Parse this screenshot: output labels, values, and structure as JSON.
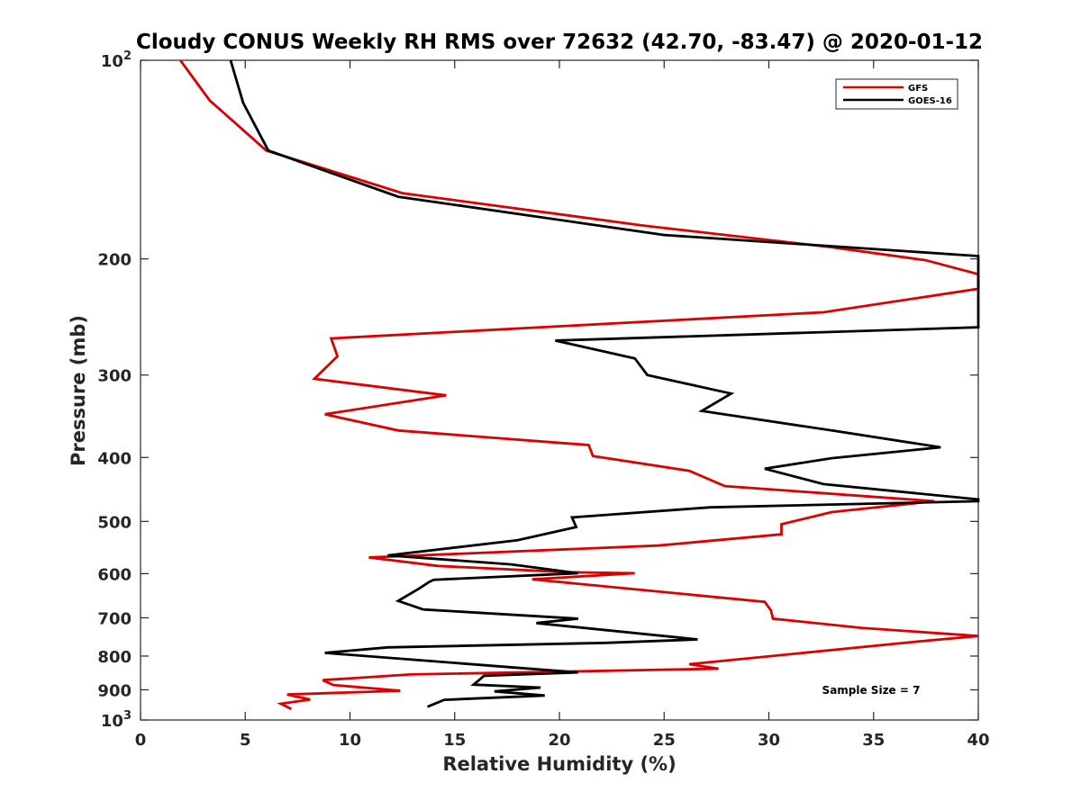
{
  "chart_data": {
    "type": "line",
    "title": "Cloudy CONUS Weekly RH RMS over 72632 (42.70, -83.47) @ 2020-01-12",
    "xlabel": "Relative Humidity (%)",
    "ylabel": "Pressure (mb)",
    "xlim": [
      0,
      40
    ],
    "ylim": [
      100,
      1000
    ],
    "y_scale": "log",
    "y_reversed": true,
    "grid": false,
    "legend_position": "top-right",
    "x_ticks": [
      "0",
      "5",
      "10",
      "15",
      "20",
      "25",
      "30",
      "35",
      "40"
    ],
    "y_ticks": [
      {
        "value": 100,
        "base": "10",
        "exp": "2"
      },
      {
        "value": 200,
        "label": "200"
      },
      {
        "value": 300,
        "label": "300"
      },
      {
        "value": 400,
        "label": "400"
      },
      {
        "value": 500,
        "label": "500"
      },
      {
        "value": 600,
        "label": "600"
      },
      {
        "value": 700,
        "label": "700"
      },
      {
        "value": 800,
        "label": "800"
      },
      {
        "value": 900,
        "label": "900"
      },
      {
        "value": 1000,
        "base": "10",
        "exp": "3"
      }
    ],
    "annotation": "Sample Size = 7",
    "series": [
      {
        "name": "GFS",
        "color": "#dd0000",
        "points": [
          [
            1.9,
            100
          ],
          [
            3.3,
            115
          ],
          [
            6.0,
            137
          ],
          [
            12.5,
            159
          ],
          [
            24.0,
            178
          ],
          [
            33.0,
            192
          ],
          [
            37.5,
            201
          ],
          [
            40,
            211
          ],
          [
            40,
            222
          ],
          [
            32.6,
            241
          ],
          [
            9.1,
            264
          ],
          [
            9.4,
            281
          ],
          [
            8.3,
            304
          ],
          [
            14.6,
            322
          ],
          [
            8.8,
            344
          ],
          [
            12.3,
            364
          ],
          [
            21.4,
            383
          ],
          [
            21.6,
            398
          ],
          [
            26.2,
            419
          ],
          [
            27.9,
            442
          ],
          [
            37.9,
            466
          ],
          [
            33.0,
            484
          ],
          [
            30.6,
            505
          ],
          [
            30.6,
            523
          ],
          [
            24.7,
            544
          ],
          [
            10.9,
            567
          ],
          [
            14.2,
            584
          ],
          [
            20.4,
            597
          ],
          [
            23.6,
            599
          ],
          [
            18.7,
            612
          ],
          [
            29.8,
            662
          ],
          [
            30.1,
            682
          ],
          [
            30.2,
            702
          ],
          [
            34.4,
            725
          ],
          [
            40,
            746
          ],
          [
            37.2,
            760
          ],
          [
            26.2,
            823
          ],
          [
            27.6,
            836
          ],
          [
            12.9,
            853
          ],
          [
            8.7,
            870
          ],
          [
            9.2,
            885
          ],
          [
            12.4,
            903
          ],
          [
            7.0,
            915
          ],
          [
            8.1,
            931
          ],
          [
            6.7,
            945
          ],
          [
            7.2,
            962
          ]
        ]
      },
      {
        "name": "GOES-16",
        "color": "#000000",
        "points": [
          [
            4.3,
            100
          ],
          [
            4.9,
            116
          ],
          [
            6.1,
            137
          ],
          [
            12.3,
            161
          ],
          [
            25.0,
            184
          ],
          [
            40,
            198
          ],
          [
            40,
            254
          ],
          [
            19.8,
            266
          ],
          [
            23.6,
            283
          ],
          [
            24.2,
            300
          ],
          [
            28.2,
            320
          ],
          [
            26.8,
            340
          ],
          [
            33.0,
            364
          ],
          [
            38.2,
            386
          ],
          [
            33.0,
            401
          ],
          [
            29.8,
            416
          ],
          [
            32.6,
            439
          ],
          [
            40,
            463
          ],
          [
            40,
            466
          ],
          [
            27.2,
            476
          ],
          [
            20.6,
            493
          ],
          [
            20.8,
            510
          ],
          [
            18.0,
            534
          ],
          [
            11.8,
            563
          ],
          [
            17.7,
            581
          ],
          [
            20.9,
            599
          ],
          [
            14.0,
            613
          ],
          [
            13.8,
            617
          ],
          [
            13.3,
            632
          ],
          [
            12.3,
            660
          ],
          [
            13.5,
            680
          ],
          [
            20.9,
            702
          ],
          [
            18.9,
            713
          ],
          [
            26.6,
            755
          ],
          [
            22.2,
            764
          ],
          [
            11.8,
            776
          ],
          [
            8.8,
            791
          ],
          [
            17.9,
            833
          ],
          [
            20.9,
            847
          ],
          [
            16.4,
            857
          ],
          [
            15.9,
            884
          ],
          [
            19.1,
            893
          ],
          [
            16.9,
            905
          ],
          [
            19.3,
            918
          ],
          [
            14.5,
            932
          ],
          [
            13.7,
            955
          ]
        ]
      }
    ]
  }
}
